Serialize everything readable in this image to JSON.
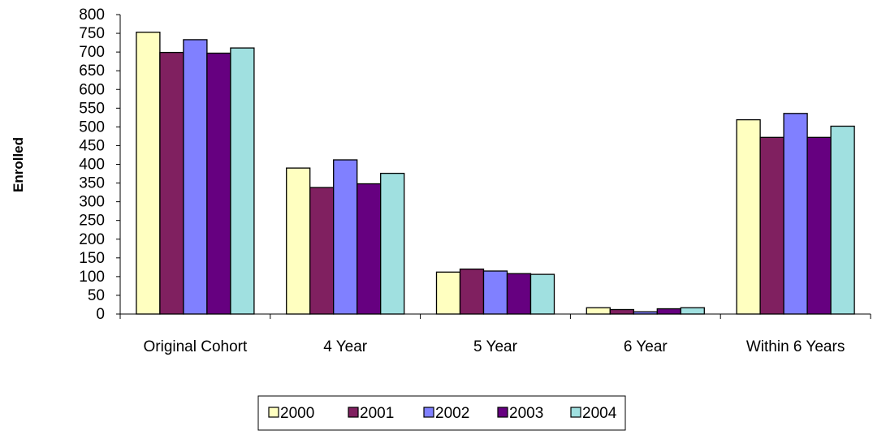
{
  "chart_data": {
    "type": "bar",
    "title": "",
    "xlabel": "",
    "ylabel": "Enrolled",
    "ylim": [
      0,
      800
    ],
    "yticks": [
      0,
      50,
      100,
      150,
      200,
      250,
      300,
      350,
      400,
      450,
      500,
      550,
      600,
      650,
      700,
      750,
      800
    ],
    "categories": [
      "Original Cohort",
      "4 Year",
      "5 Year",
      "6 Year",
      "Within 6 Years"
    ],
    "series": [
      {
        "name": "2000",
        "color": "#FFFFC0",
        "values": [
          753,
          390,
          112,
          17,
          519
        ]
      },
      {
        "name": "2001",
        "color": "#802060",
        "values": [
          699,
          338,
          120,
          12,
          472
        ]
      },
      {
        "name": "2002",
        "color": "#8080FF",
        "values": [
          733,
          412,
          115,
          6,
          536
        ]
      },
      {
        "name": "2003",
        "color": "#660080",
        "values": [
          697,
          348,
          108,
          14,
          472
        ]
      },
      {
        "name": "2004",
        "color": "#A0E0E0",
        "values": [
          711,
          376,
          106,
          17,
          502
        ]
      }
    ],
    "grid": false,
    "legend_position": "bottom"
  }
}
